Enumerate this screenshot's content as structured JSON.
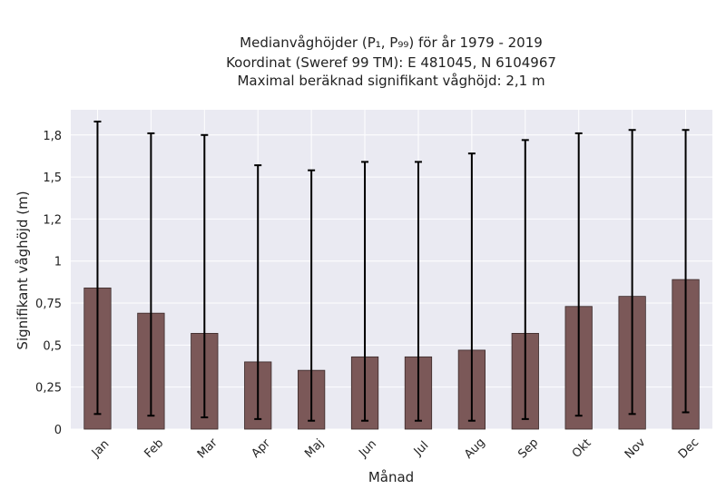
{
  "chart_data": {
    "type": "bar",
    "title_lines": [
      "Medianvåghöjder (P₁, P₉₉) för år 1979 - 2019",
      "Koordinat (Sweref 99 TM): E 481045, N 6104967",
      "Maximal beräknad signifikant våghöjd: 2,1 m"
    ],
    "xlabel": "Månad",
    "ylabel": "Signifikant våghöjd (m)",
    "categories": [
      "Jan",
      "Feb",
      "Mar",
      "Apr",
      "Maj",
      "Jun",
      "Jul",
      "Aug",
      "Sep",
      "Okt",
      "Nov",
      "Dec"
    ],
    "values": [
      0.84,
      0.69,
      0.57,
      0.4,
      0.35,
      0.43,
      0.43,
      0.47,
      0.57,
      0.73,
      0.79,
      0.89
    ],
    "p1": [
      0.09,
      0.08,
      0.07,
      0.06,
      0.05,
      0.05,
      0.05,
      0.05,
      0.06,
      0.08,
      0.09,
      0.1
    ],
    "p99": [
      1.83,
      1.76,
      1.75,
      1.57,
      1.54,
      1.59,
      1.59,
      1.64,
      1.72,
      1.76,
      1.78,
      1.78
    ],
    "yticks": [
      0,
      0.25,
      0.5,
      0.75,
      1,
      1.25,
      1.5,
      1.75
    ],
    "ytick_labels": [
      "0",
      "0,25",
      "0,5",
      "0,75",
      "1",
      "1,2",
      "1,5",
      "1,8"
    ],
    "ylim": [
      0,
      1.9
    ],
    "grid": true,
    "colors": {
      "bar": "#7b5858",
      "bar_edge": "#3a2a2a",
      "error": "#000000",
      "background": "#eaeaf2",
      "grid": "#ffffff"
    }
  }
}
